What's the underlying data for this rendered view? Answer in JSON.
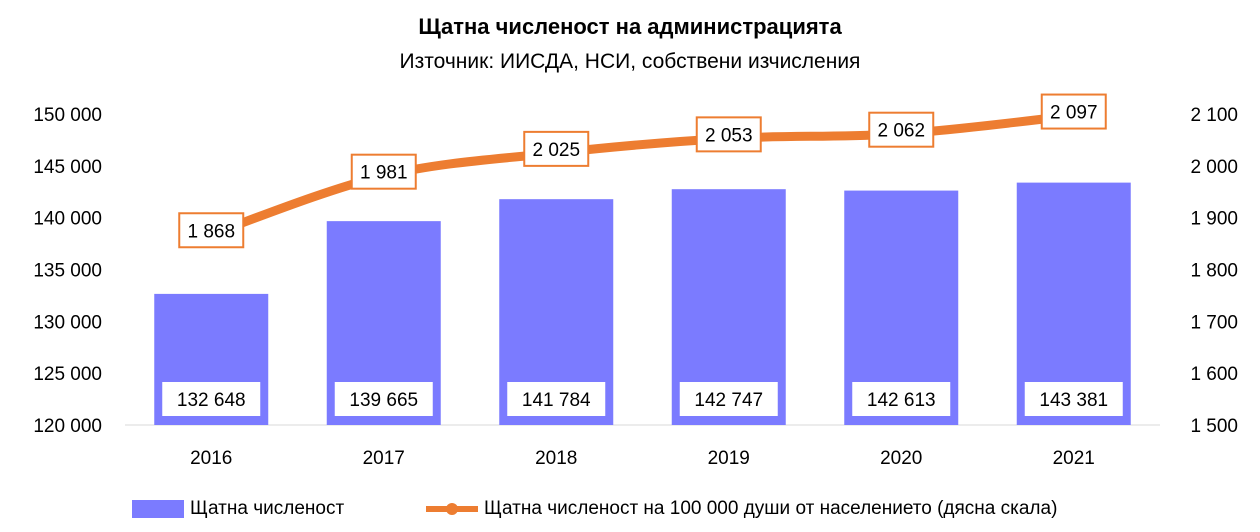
{
  "title": "Щатна численост на администрацията",
  "subtitle": "Източник: ИИСДА, НСИ, собствени изчисления",
  "chart_data": {
    "type": "bar",
    "categories": [
      "2016",
      "2017",
      "2018",
      "2019",
      "2020",
      "2021"
    ],
    "series": [
      {
        "name": "Щатна численост",
        "type": "bar",
        "axis": "left",
        "values": [
          132648,
          139665,
          141784,
          142747,
          142613,
          143381
        ],
        "labels": [
          "132 648",
          "139 665",
          "141 784",
          "142 747",
          "142 613",
          "143 381"
        ],
        "color": "#7b7bff"
      },
      {
        "name": "Щатна численост на 100 000 души от населението (дясна скала)",
        "type": "line",
        "axis": "right",
        "values": [
          1868,
          1981,
          2025,
          2053,
          2062,
          2097
        ],
        "labels": [
          "1 868",
          "1 981",
          "2 025",
          "2 053",
          "2 062",
          "2 097"
        ],
        "color": "#ed7d31"
      }
    ],
    "y_left": {
      "min": 120000,
      "max": 150000,
      "ticks": [
        120000,
        125000,
        130000,
        135000,
        140000,
        145000,
        150000
      ],
      "tick_labels": [
        "120 000",
        "125 000",
        "130 000",
        "135 000",
        "140 000",
        "145 000",
        "150 000"
      ]
    },
    "y_right": {
      "min": 1500,
      "max": 2100,
      "ticks": [
        1500,
        1600,
        1700,
        1800,
        1900,
        2000,
        2100
      ],
      "tick_labels": [
        "1 500",
        "1 600",
        "1 700",
        "1 800",
        "1 900",
        "2 000",
        "2 100"
      ]
    },
    "grid": false,
    "legend_position": "bottom"
  }
}
